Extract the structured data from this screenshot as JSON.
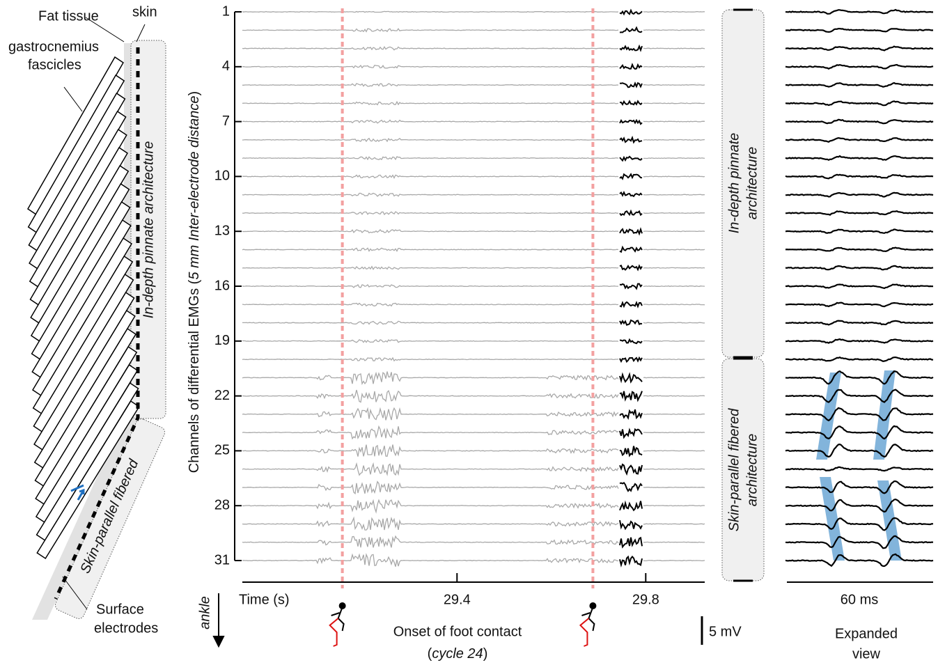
{
  "left_diagram": {
    "fat_tissue": "Fat tissue",
    "skin": "skin",
    "fascicles": [
      "gastrocnemius",
      "fascicles"
    ],
    "pinnate_label": "In-depth pinnate architecture",
    "parallel_label": "Skin-parallel fibered",
    "electrodes": [
      "Surface",
      "electrodes"
    ]
  },
  "chart_data": {
    "type": "traces",
    "ylabel": [
      "Channels of differential EMGs (",
      "5 mm Inter-electrode distance",
      ")"
    ],
    "xlabel": "Time (s)",
    "ylim": [
      1,
      31
    ],
    "yticks": [
      1,
      4,
      7,
      10,
      13,
      16,
      19,
      22,
      25,
      28,
      31
    ],
    "xlim": [
      28.945,
      29.925
    ],
    "xticks": [
      29.4,
      29.8
    ],
    "onsets": [
      29.157,
      29.688
    ],
    "onset_label": "Onset of foot contact",
    "cycle_label": [
      "(",
      "cycle 24",
      ")"
    ],
    "direction_label": "ankle",
    "scale_bar": "5 mV"
  },
  "regions": {
    "pinnate": [
      "In-depth pinnate",
      "architecture"
    ],
    "parallel": [
      "Skin-parallel fibered",
      "architecture"
    ]
  },
  "expanded": {
    "scale": "60 ms",
    "label": [
      "Expanded",
      "view"
    ]
  }
}
